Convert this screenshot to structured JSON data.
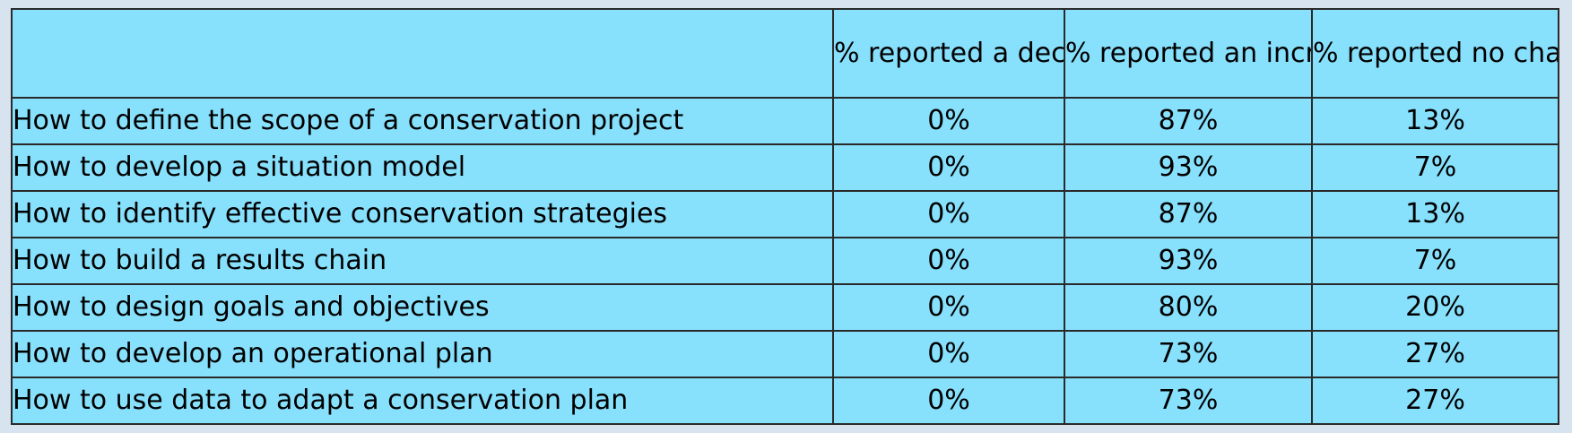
{
  "table": {
    "headers": [
      "",
      "% reported a decrease",
      "% reported an increase",
      "% reported no change"
    ],
    "rows": [
      {
        "label": "How to define the scope of a conservation project",
        "decrease": "0%",
        "increase": "87%",
        "no_change": "13%"
      },
      {
        "label": "How to develop a situation model",
        "decrease": "0%",
        "increase": "93%",
        "no_change": "7%"
      },
      {
        "label": "How to identify effective conservation strategies",
        "decrease": "0%",
        "increase": "87%",
        "no_change": "13%"
      },
      {
        "label": "How to build a results chain",
        "decrease": "0%",
        "increase": "93%",
        "no_change": "7%"
      },
      {
        "label": "How to design goals and objectives",
        "decrease": "0%",
        "increase": "80%",
        "no_change": "20%"
      },
      {
        "label": "How to develop an operational plan",
        "decrease": "0%",
        "increase": "73%",
        "no_change": "27%"
      },
      {
        "label": "How to use data to adapt a conservation plan",
        "decrease": "0%",
        "increase": "73%",
        "no_change": "27%"
      }
    ]
  },
  "colors": {
    "cell_background": "#87e0fc",
    "border": "#2a2a2a",
    "page_background": "#d7e3ee"
  }
}
